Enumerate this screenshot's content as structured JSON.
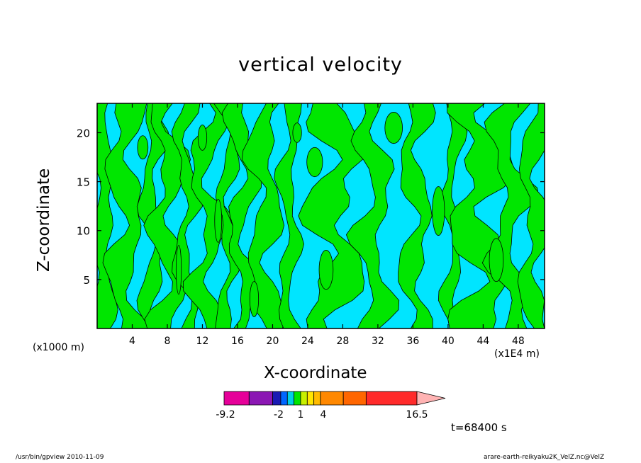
{
  "chart_data": {
    "type": "heatmap",
    "title": "vertical velocity",
    "xlabel": "X-coordinate",
    "ylabel": "Z-coordinate",
    "x_unit_left": "(x1000 m)",
    "x_unit_right": "(x1E4 m)",
    "xlim": [
      0,
      51
    ],
    "ylim": [
      0,
      23
    ],
    "x_ticks": [
      "4",
      "8",
      "12",
      "16",
      "20",
      "24",
      "28",
      "32",
      "36",
      "40",
      "44",
      "48"
    ],
    "x_tick_values": [
      4,
      8,
      12,
      16,
      20,
      24,
      28,
      32,
      36,
      40,
      44,
      48
    ],
    "y_ticks": [
      "5",
      "10",
      "15",
      "20"
    ],
    "y_tick_values": [
      5,
      10,
      15,
      20
    ],
    "contour_colors": {
      "negative": "#00e5ff",
      "positive": "#00e600",
      "line": "#000000"
    },
    "colorbar": {
      "colors": [
        "#e60099",
        "#8b17b3",
        "#1a1ab3",
        "#0066ff",
        "#00cfe6",
        "#00e600",
        "#c8f000",
        "#ffe600",
        "#ffbb00",
        "#ff8800",
        "#ff6600",
        "#ff2a2a",
        "#ff7f7f",
        "#ffb3b3"
      ],
      "labels": [
        "-9.2",
        "-2",
        "1",
        "4",
        "16.5"
      ],
      "label_values": [
        -9.2,
        -2,
        1,
        4,
        16.5
      ]
    },
    "time_label": "t=68400 s",
    "footer_left": "/usr/bin/gpview   2010-11-09",
    "footer_right": "arare-earth-reikyaku2K_VelZ.nc@VelZ"
  }
}
